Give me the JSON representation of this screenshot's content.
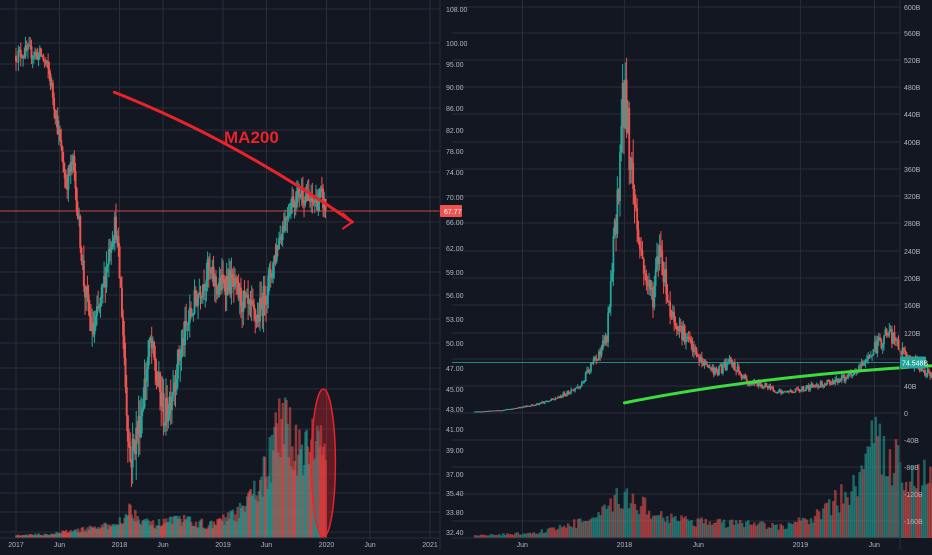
{
  "colors": {
    "background": "#131722",
    "grid": "#2a2e39",
    "up": "#26a69a",
    "down": "#ef5350",
    "axis_text": "#b2b5be",
    "annotation_red": "#e8232b",
    "annotation_green": "#3ddc3d",
    "price_tag_left": "#ef5350",
    "price_tag_right": "#26a69a"
  },
  "chart_data": [
    {
      "type": "candlestick",
      "panel": "left",
      "annotation_text": "MA200",
      "last_price_label": "67.77",
      "last_price": 67.77,
      "x_tick_labels": [
        "2017",
        "Jun",
        "2018",
        "Jun",
        "2019",
        "Jun",
        "2020",
        "Jun",
        "2021"
      ],
      "y_tick_labels": [
        "108.00",
        "100.00",
        "95.00",
        "90.00",
        "86.00",
        "82.00",
        "78.00",
        "74.00",
        "70.00",
        "66.00",
        "62.00",
        "59.00",
        "56.00",
        "53.00",
        "50.00",
        "47.00",
        "45.00",
        "43.00",
        "41.00",
        "39.00",
        "37.00",
        "35.40",
        "33.80",
        "32.40"
      ],
      "price_path": [
        [
          2017.0,
          97
        ],
        [
          2017.1,
          98
        ],
        [
          2017.25,
          97
        ],
        [
          2017.32,
          93
        ],
        [
          2017.4,
          83
        ],
        [
          2017.48,
          72
        ],
        [
          2017.55,
          76
        ],
        [
          2017.6,
          67
        ],
        [
          2017.66,
          57
        ],
        [
          2017.74,
          51
        ],
        [
          2017.82,
          55
        ],
        [
          2017.9,
          62
        ],
        [
          2017.96,
          66
        ],
        [
          2018.02,
          55
        ],
        [
          2018.06,
          45
        ],
        [
          2018.1,
          38
        ],
        [
          2018.2,
          42
        ],
        [
          2018.3,
          50
        ],
        [
          2018.36,
          46
        ],
        [
          2018.44,
          42
        ],
        [
          2018.55,
          47
        ],
        [
          2018.65,
          52
        ],
        [
          2018.75,
          56
        ],
        [
          2018.85,
          59
        ],
        [
          2018.95,
          57
        ],
        [
          2019.05,
          58
        ],
        [
          2019.15,
          56
        ],
        [
          2019.25,
          54
        ],
        [
          2019.33,
          53
        ],
        [
          2019.45,
          58
        ],
        [
          2019.55,
          64
        ],
        [
          2019.65,
          69
        ],
        [
          2019.75,
          71
        ],
        [
          2019.85,
          69
        ],
        [
          2019.95,
          70
        ],
        [
          2020.0,
          67.77
        ]
      ],
      "volume_profile": [
        [
          2017.0,
          0.02
        ],
        [
          2017.3,
          0.03
        ],
        [
          2017.6,
          0.06
        ],
        [
          2017.95,
          0.1
        ],
        [
          2018.1,
          0.22
        ],
        [
          2018.3,
          0.1
        ],
        [
          2018.6,
          0.14
        ],
        [
          2018.9,
          0.1
        ],
        [
          2019.2,
          0.22
        ],
        [
          2019.4,
          0.5
        ],
        [
          2019.55,
          0.85
        ],
        [
          2019.75,
          0.72
        ],
        [
          2019.95,
          0.78
        ],
        [
          2020.0,
          0.6
        ]
      ],
      "trend_line": [
        [
          2017.95,
          89
        ],
        [
          2020.25,
          66
        ]
      ],
      "volume_oval_center_year": 2019.97
    },
    {
      "type": "candlestick",
      "panel": "right",
      "last_price_label": "74.548B",
      "last_price": 74.548,
      "x_tick_labels": [
        "Jun",
        "2018",
        "Jun",
        "2019",
        "Jun",
        "2020",
        "Jun",
        "2021"
      ],
      "y_tick_labels": [
        "600B",
        "560B",
        "520B",
        "480B",
        "440B",
        "400B",
        "360B",
        "320B",
        "280B",
        "240B",
        "200B",
        "160B",
        "120B",
        "80B",
        "40B",
        "0",
        "-40B",
        "-80B",
        "-120B",
        "-160B"
      ],
      "price_path": [
        [
          2017.15,
          2
        ],
        [
          2017.3,
          4
        ],
        [
          2017.45,
          10
        ],
        [
          2017.6,
          20
        ],
        [
          2017.75,
          40
        ],
        [
          2017.9,
          110
        ],
        [
          2017.95,
          280
        ],
        [
          2018.0,
          480
        ],
        [
          2018.04,
          360
        ],
        [
          2018.08,
          260
        ],
        [
          2018.12,
          200
        ],
        [
          2018.16,
          170
        ],
        [
          2018.2,
          250
        ],
        [
          2018.26,
          150
        ],
        [
          2018.33,
          120
        ],
        [
          2018.42,
          80
        ],
        [
          2018.52,
          60
        ],
        [
          2018.6,
          75
        ],
        [
          2018.7,
          45
        ],
        [
          2018.8,
          40
        ],
        [
          2018.9,
          30
        ],
        [
          2019.0,
          35
        ],
        [
          2019.15,
          45
        ],
        [
          2019.3,
          55
        ],
        [
          2019.42,
          95
        ],
        [
          2019.5,
          120
        ],
        [
          2019.6,
          80
        ],
        [
          2019.72,
          60
        ],
        [
          2019.85,
          55
        ],
        [
          2019.95,
          45
        ],
        [
          2020.0,
          74.548
        ]
      ],
      "volume_profile": [
        [
          2017.15,
          0.02
        ],
        [
          2017.5,
          0.05
        ],
        [
          2017.85,
          0.18
        ],
        [
          2018.0,
          0.4
        ],
        [
          2018.2,
          0.2
        ],
        [
          2018.5,
          0.14
        ],
        [
          2018.9,
          0.1
        ],
        [
          2019.1,
          0.2
        ],
        [
          2019.3,
          0.45
        ],
        [
          2019.42,
          0.85
        ],
        [
          2019.6,
          0.6
        ],
        [
          2019.8,
          0.55
        ],
        [
          2019.95,
          0.62
        ],
        [
          2020.0,
          0.5
        ]
      ],
      "trend_line": [
        [
          2018.0,
          15
        ],
        [
          2020.6,
          78
        ]
      ],
      "volume_oval_center_year": 2020.0
    }
  ]
}
